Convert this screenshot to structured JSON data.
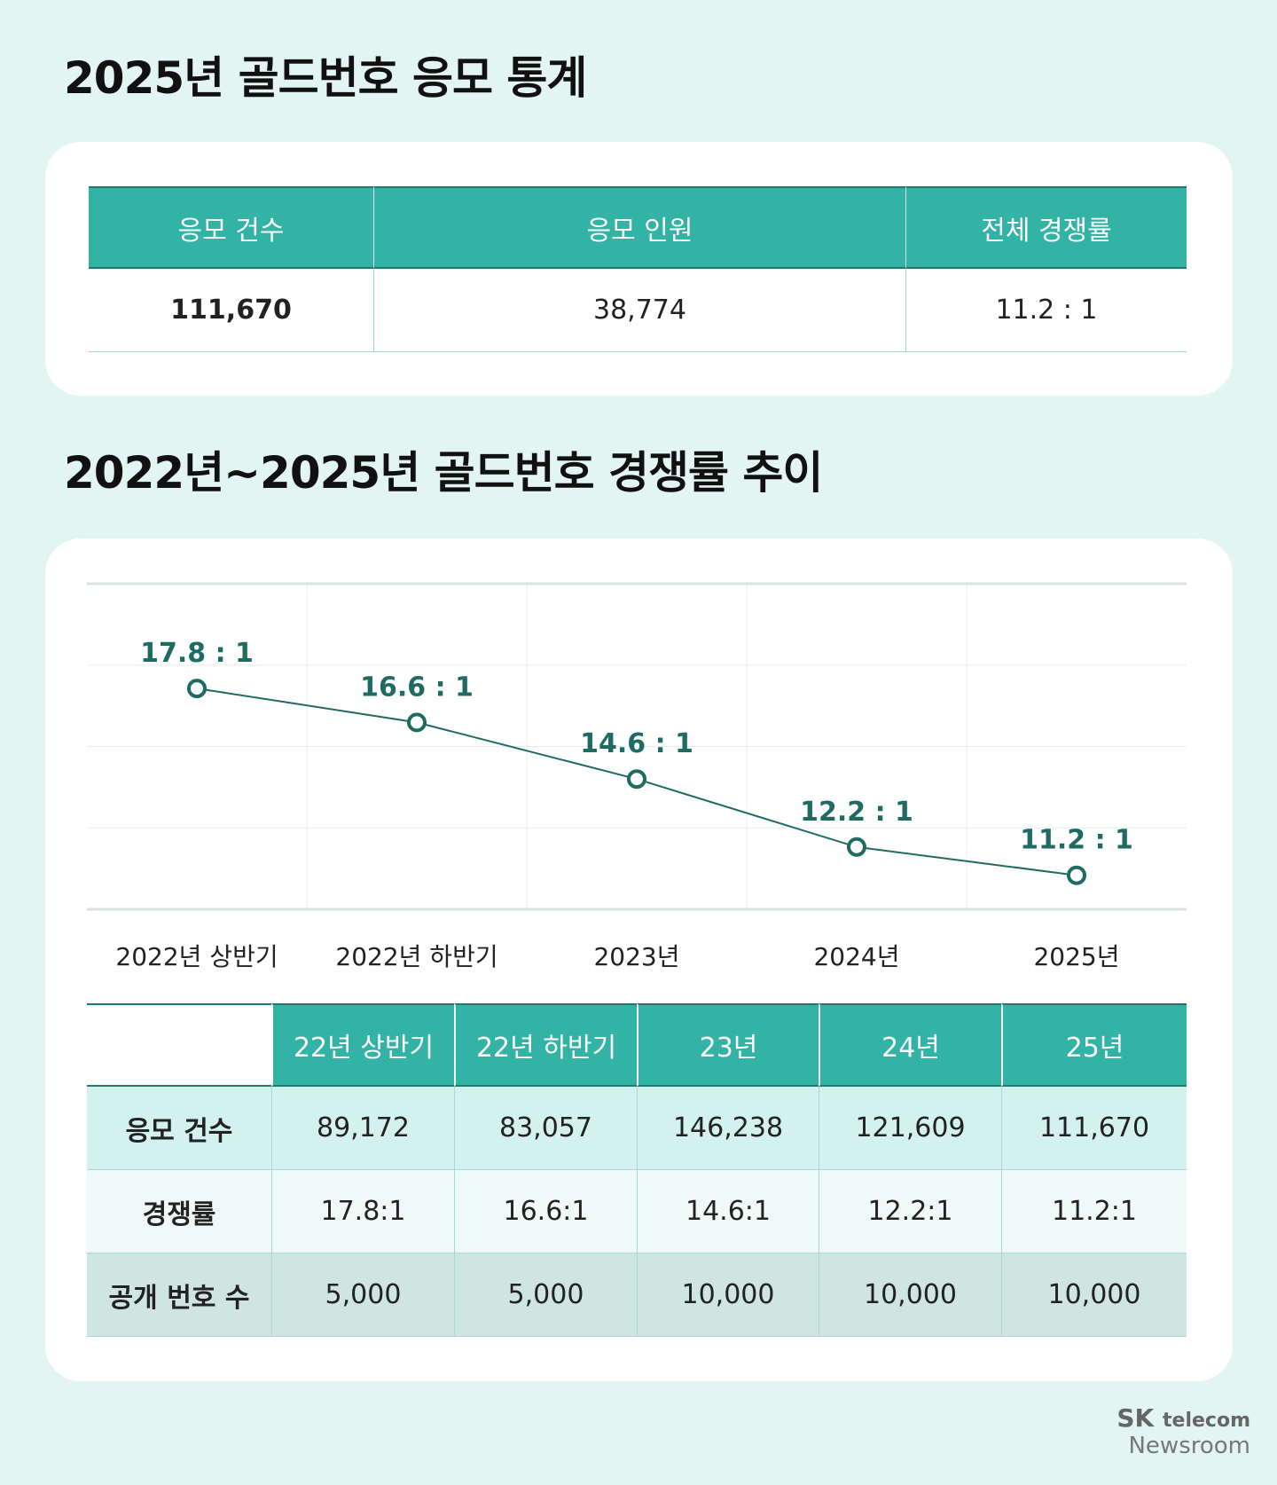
{
  "header": {
    "title": "2025년 골드번호 응모 통계"
  },
  "summary_table": {
    "columns": [
      "응모 건수",
      "응모 인원",
      "전체 경쟁률"
    ],
    "values": [
      "111,670",
      "38,774",
      "11.2 : 1"
    ]
  },
  "chart_data": {
    "type": "line",
    "title": "2022년~2025년 골드번호 경쟁률 추이",
    "categories": [
      "2022년 상반기",
      "2022년 하반기",
      "2023년",
      "2024년",
      "2025년"
    ],
    "series": [
      {
        "color": "#1f6b63",
        "values": [
          17.8,
          16.6,
          14.6,
          12.2,
          11.2
        ],
        "value_labels": [
          "17.8 : 1",
          "16.6 : 1",
          "14.6 : 1",
          "12.2 : 1",
          "11.2 : 1"
        ]
      }
    ],
    "ylim": [
      10,
      21.5
    ],
    "grid": true
  },
  "detail_table": {
    "columns": [
      "22년 상반기",
      "22년 하반기",
      "23년",
      "24년",
      "25년"
    ],
    "rows": [
      {
        "label": "응모 건수",
        "cells": [
          "89,172",
          "83,057",
          "146,238",
          "121,609",
          "111,670"
        ]
      },
      {
        "label": "경쟁률",
        "cells": [
          "17.8:1",
          "16.6:1",
          "14.6:1",
          "12.2:1",
          "11.2:1"
        ]
      },
      {
        "label": "공개 번호 수",
        "cells": [
          "5,000",
          "5,000",
          "10,000",
          "10,000",
          "10,000"
        ]
      }
    ]
  },
  "footer": {
    "brand": "SK",
    "product": "telecom",
    "channel": "Newsroom"
  }
}
